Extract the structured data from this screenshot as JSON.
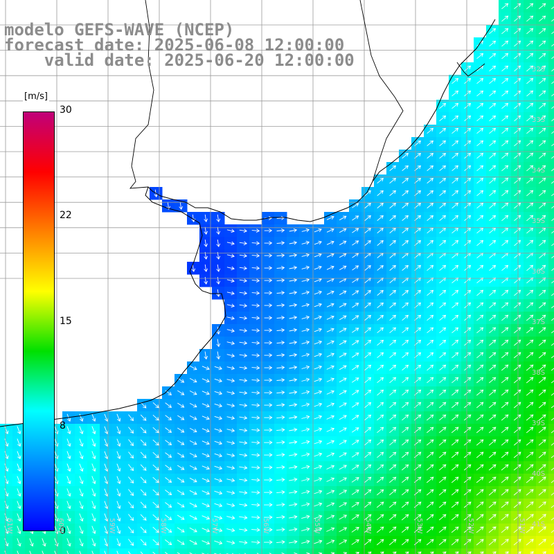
{
  "titles": {
    "line1": "modelo GEFS-WAVE (NCEP)",
    "line2": "forecast date: 2025-06-08 12:00:00",
    "line3": "    valid date: 2025-06-20 12:00:00"
  },
  "colorbar": {
    "unit": "[m/s]",
    "ticks": [
      "30",
      "22",
      "15",
      "8",
      "0"
    ],
    "colors": [
      "#0000ff",
      "#0080ff",
      "#00ffff",
      "#00e000",
      "#ffff00",
      "#ff8000",
      "#ff0000",
      "#c0007a"
    ]
  },
  "lat_labels": [
    "32S",
    "33S",
    "34S",
    "35S",
    "36S",
    "37S",
    "38S",
    "39S",
    "40S",
    "41S"
  ],
  "lon_labels": [
    "61W",
    "60W",
    "59W",
    "58W",
    "57W",
    "56W",
    "55W",
    "54W",
    "53W",
    "52W",
    "51W"
  ],
  "colors": {
    "land": "#ffffff",
    "grid": "#9a9a9a",
    "coast": "#000000",
    "arrows": "#ffffff",
    "title": "#8c8c8c"
  }
}
